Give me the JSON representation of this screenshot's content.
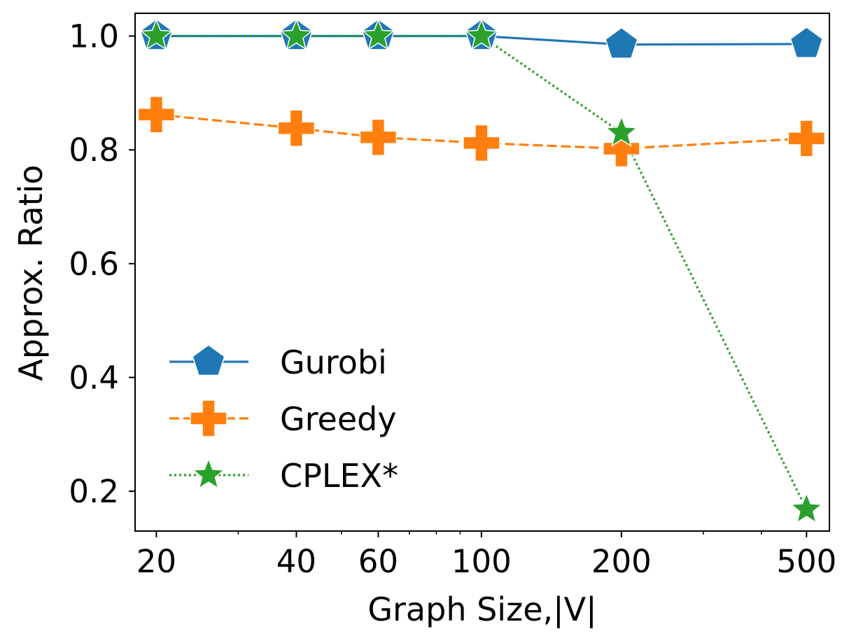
{
  "chart_data": {
    "type": "line",
    "title": "",
    "xlabel": "Graph Size,|V|",
    "ylabel": "Approx. Ratio",
    "xscale": "log",
    "x": [
      20,
      40,
      60,
      100,
      200,
      500
    ],
    "x_tick_labels": [
      "20",
      "40",
      "60",
      "100",
      "200",
      "500"
    ],
    "xlim": [
      18,
      560
    ],
    "ylim": [
      0.13,
      1.04
    ],
    "y_ticks": [
      0.2,
      0.4,
      0.6,
      0.8,
      1.0
    ],
    "y_tick_labels": [
      "0.2",
      "0.4",
      "0.6",
      "0.8",
      "1.0"
    ],
    "grid": false,
    "legend_position": "lower-left",
    "series": [
      {
        "name": "Gurobi",
        "values": [
          1.0,
          1.0,
          1.0,
          1.0,
          0.985,
          0.986
        ],
        "color": "#1f77b4",
        "line_style": "solid",
        "marker": "pentagon"
      },
      {
        "name": "Greedy",
        "values": [
          0.862,
          0.838,
          0.822,
          0.812,
          0.802,
          0.82
        ],
        "color": "#ff7f0e",
        "line_style": "dashed",
        "marker": "plus"
      },
      {
        "name": "CPLEX*",
        "values": [
          1.0,
          1.0,
          1.0,
          1.0,
          0.83,
          0.168
        ],
        "color": "#2ca02c",
        "line_style": "dotted",
        "marker": "star"
      }
    ]
  }
}
